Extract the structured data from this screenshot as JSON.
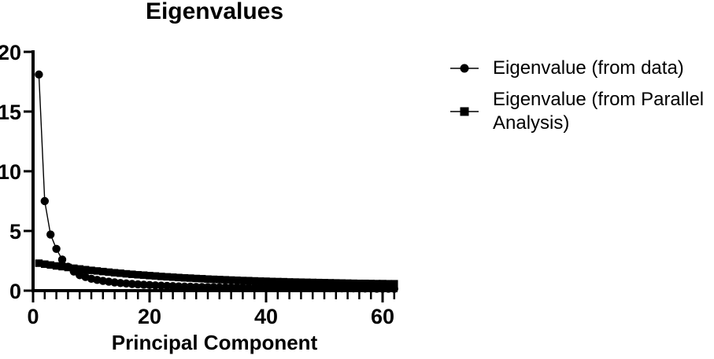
{
  "figure": {
    "background": "#ffffff",
    "ink_color": "#000000"
  },
  "chart_data": {
    "type": "line",
    "title": "Eigenvalues",
    "xlabel": "Principal Component",
    "ylabel": "",
    "xlim": [
      0,
      63
    ],
    "ylim": [
      0,
      20
    ],
    "x_major_ticks": [
      0,
      20,
      40,
      60
    ],
    "x_minor_tick_step": 2,
    "x_minor_tick_max": 62,
    "y_major_ticks": [
      0,
      5,
      10,
      15,
      20
    ],
    "grid": false,
    "legend_position": "right",
    "x": [
      1,
      2,
      3,
      4,
      5,
      6,
      7,
      8,
      9,
      10,
      11,
      12,
      13,
      14,
      15,
      16,
      17,
      18,
      19,
      20,
      21,
      22,
      23,
      24,
      25,
      26,
      27,
      28,
      29,
      30,
      31,
      32,
      33,
      34,
      35,
      36,
      37,
      38,
      39,
      40,
      41,
      42,
      43,
      44,
      45,
      46,
      47,
      48,
      49,
      50,
      51,
      52,
      53,
      54,
      55,
      56,
      57,
      58,
      59,
      60,
      61,
      62
    ],
    "series": [
      {
        "name": "Eigenvalue (from data)",
        "marker": "circle",
        "color": "#000000",
        "values": [
          18.1,
          7.5,
          4.7,
          3.5,
          2.6,
          2.0,
          1.6,
          1.3,
          1.15,
          1.0,
          0.9,
          0.82,
          0.75,
          0.69,
          0.64,
          0.6,
          0.56,
          0.53,
          0.5,
          0.47,
          0.44,
          0.42,
          0.4,
          0.38,
          0.36,
          0.34,
          0.33,
          0.31,
          0.3,
          0.3,
          0.29,
          0.28,
          0.28,
          0.27,
          0.27,
          0.26,
          0.26,
          0.25,
          0.25,
          0.24,
          0.24,
          0.23,
          0.23,
          0.22,
          0.22,
          0.22,
          0.21,
          0.21,
          0.21,
          0.2,
          0.2,
          0.2,
          0.19,
          0.19,
          0.19,
          0.18,
          0.18,
          0.18,
          0.17,
          0.17,
          0.17,
          0.16
        ]
      },
      {
        "name": "Eigenvalue (from Parallel Analysis)",
        "marker": "square",
        "color": "#000000",
        "values": [
          2.3,
          2.22,
          2.15,
          2.07,
          2.01,
          1.94,
          1.88,
          1.82,
          1.76,
          1.7,
          1.65,
          1.6,
          1.55,
          1.5,
          1.46,
          1.41,
          1.37,
          1.33,
          1.3,
          1.26,
          1.23,
          1.19,
          1.16,
          1.13,
          1.1,
          1.07,
          1.05,
          1.02,
          1.0,
          0.97,
          0.95,
          0.93,
          0.91,
          0.89,
          0.87,
          0.85,
          0.84,
          0.82,
          0.8,
          0.79,
          0.77,
          0.76,
          0.75,
          0.73,
          0.72,
          0.71,
          0.7,
          0.69,
          0.68,
          0.67,
          0.66,
          0.65,
          0.64,
          0.63,
          0.62,
          0.61,
          0.61,
          0.6,
          0.59,
          0.59,
          0.58,
          0.58
        ]
      }
    ]
  }
}
